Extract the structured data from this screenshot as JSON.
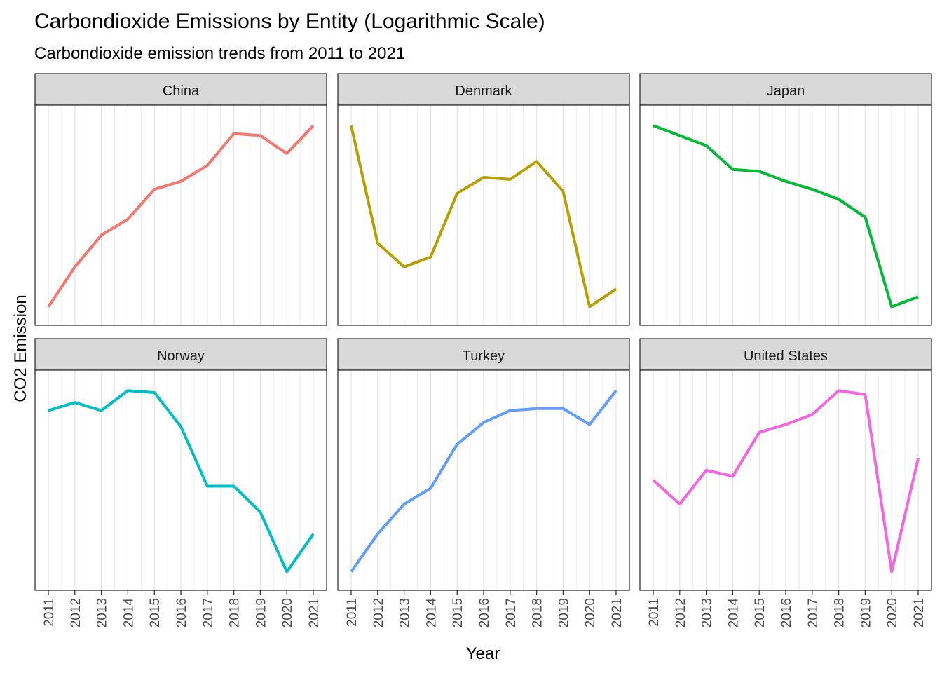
{
  "chart_data": {
    "type": "line",
    "title": "Carbondioxide Emissions by Entity (Logarithmic Scale)",
    "subtitle": "Carbondioxide emission trends from 2011 to 2021",
    "xlabel": "Year",
    "ylabel": "CO2 Emission",
    "y_scale": "log",
    "y_tick_labels_shown": false,
    "grid": "vertical minor gridlines only",
    "x": [
      "2011",
      "2012",
      "2013",
      "2014",
      "2015",
      "2016",
      "2017",
      "2018",
      "2019",
      "2020",
      "2021"
    ],
    "facet_rows": 2,
    "facet_cols": 3,
    "scales": "free_y",
    "series": [
      {
        "name": "China",
        "color": "#F8766D",
        "values": [
          0.04,
          0.24,
          0.4,
          0.48,
          0.63,
          0.67,
          0.75,
          0.91,
          0.9,
          0.81,
          0.95
        ]
      },
      {
        "name": "Denmark",
        "color": "#B79F00",
        "values": [
          0.95,
          0.36,
          0.24,
          0.29,
          0.61,
          0.69,
          0.68,
          0.77,
          0.62,
          0.04,
          0.13
        ]
      },
      {
        "name": "Japan",
        "color": "#00BA38",
        "values": [
          0.95,
          0.9,
          0.85,
          0.73,
          0.72,
          0.67,
          0.63,
          0.58,
          0.49,
          0.04,
          0.09
        ]
      },
      {
        "name": "Norway",
        "color": "#00BFC4",
        "values": [
          0.85,
          0.89,
          0.85,
          0.95,
          0.94,
          0.77,
          0.47,
          0.47,
          0.34,
          0.04,
          0.23
        ]
      },
      {
        "name": "Turkey",
        "color": "#619CFF",
        "values": [
          0.04,
          0.23,
          0.38,
          0.46,
          0.68,
          0.79,
          0.85,
          0.86,
          0.86,
          0.78,
          0.95
        ]
      },
      {
        "name": "United States",
        "color": "#F564E3",
        "values": [
          0.5,
          0.38,
          0.55,
          0.52,
          0.74,
          0.78,
          0.83,
          0.95,
          0.93,
          0.04,
          0.61
        ]
      }
    ]
  }
}
